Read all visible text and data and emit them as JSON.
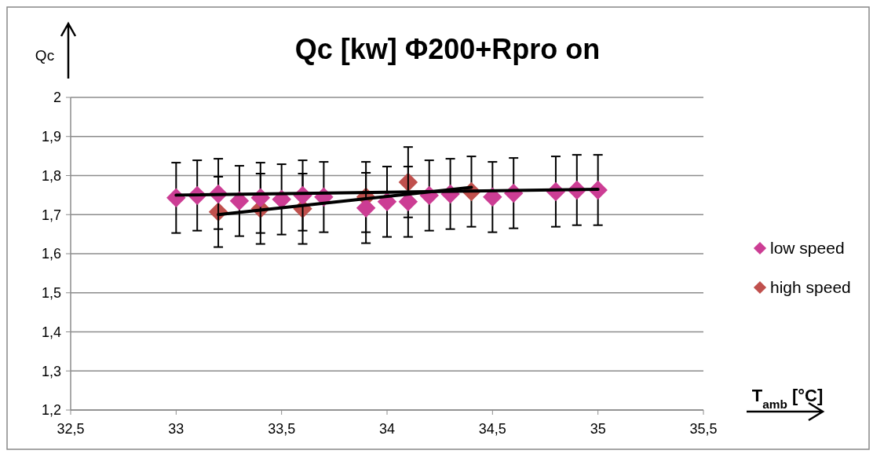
{
  "chart_data": {
    "type": "scatter",
    "title": "Qc [kw]  Φ200+Rpro on",
    "xlabel": "T$_{amb}$ [°C]",
    "ylabel": "Qc",
    "xlim": [
      32.5,
      35.5
    ],
    "ylim": [
      1.2,
      2
    ],
    "xticks": [
      {
        "value": 32.5,
        "label": "32,5"
      },
      33,
      {
        "value": 33.5,
        "label": "33,5"
      },
      34,
      {
        "value": 34.5,
        "label": "34,5"
      },
      35,
      {
        "value": 35.5,
        "label": "35,5"
      }
    ],
    "yticks": [
      {
        "value": 1.2,
        "label": "1,2"
      },
      {
        "value": 1.3,
        "label": "1,3"
      },
      {
        "value": 1.4,
        "label": "1,4"
      },
      {
        "value": 1.5,
        "label": "1,5"
      },
      {
        "value": 1.6,
        "label": "1,6"
      },
      {
        "value": 1.7,
        "label": "1,7"
      },
      {
        "value": 1.8,
        "label": "1,8"
      },
      {
        "value": 1.9,
        "label": "1,9"
      },
      2
    ],
    "grid": "y",
    "legend": "right",
    "marker": "diamond",
    "series": [
      {
        "name": "low speed",
        "color": "#cc3d94",
        "x": [
          33,
          33.1,
          33.2,
          33.3,
          33.4,
          33.5,
          33.6,
          33.7,
          33.9,
          34,
          34.1,
          34.2,
          34.3,
          34.5,
          34.6,
          34.8,
          34.9,
          35
        ],
        "values": [
          1.743,
          1.749,
          1.753,
          1.735,
          1.743,
          1.739,
          1.749,
          1.745,
          1.717,
          1.733,
          1.733,
          1.749,
          1.753,
          1.745,
          1.755,
          1.759,
          1.763,
          1.763
        ],
        "errors": [
          0.09,
          0.09,
          0.09,
          0.09,
          0.09,
          0.09,
          0.09,
          0.09,
          0.09,
          0.09,
          0.09,
          0.09,
          0.09,
          0.09,
          0.09,
          0.09,
          0.09,
          0.09
        ]
      },
      {
        "name": "high speed",
        "color": "#c0504d",
        "x": [
          33.2,
          33.4,
          33.6,
          33.9,
          34.1,
          34.4
        ],
        "values": [
          1.707,
          1.715,
          1.715,
          1.745,
          1.783,
          1.759
        ],
        "errors": [
          0.09,
          0.09,
          0.09,
          0.09,
          0.09,
          0.09
        ]
      },
      {
        "type": "line",
        "color": "#000000",
        "marker": "none",
        "x": [
          33,
          35
        ],
        "values": [
          1.75,
          1.765
        ]
      },
      {
        "type": "line",
        "color": "#000000",
        "marker": "none",
        "x": [
          33.2,
          34.4
        ],
        "values": [
          1.7,
          1.77
        ]
      }
    ]
  }
}
